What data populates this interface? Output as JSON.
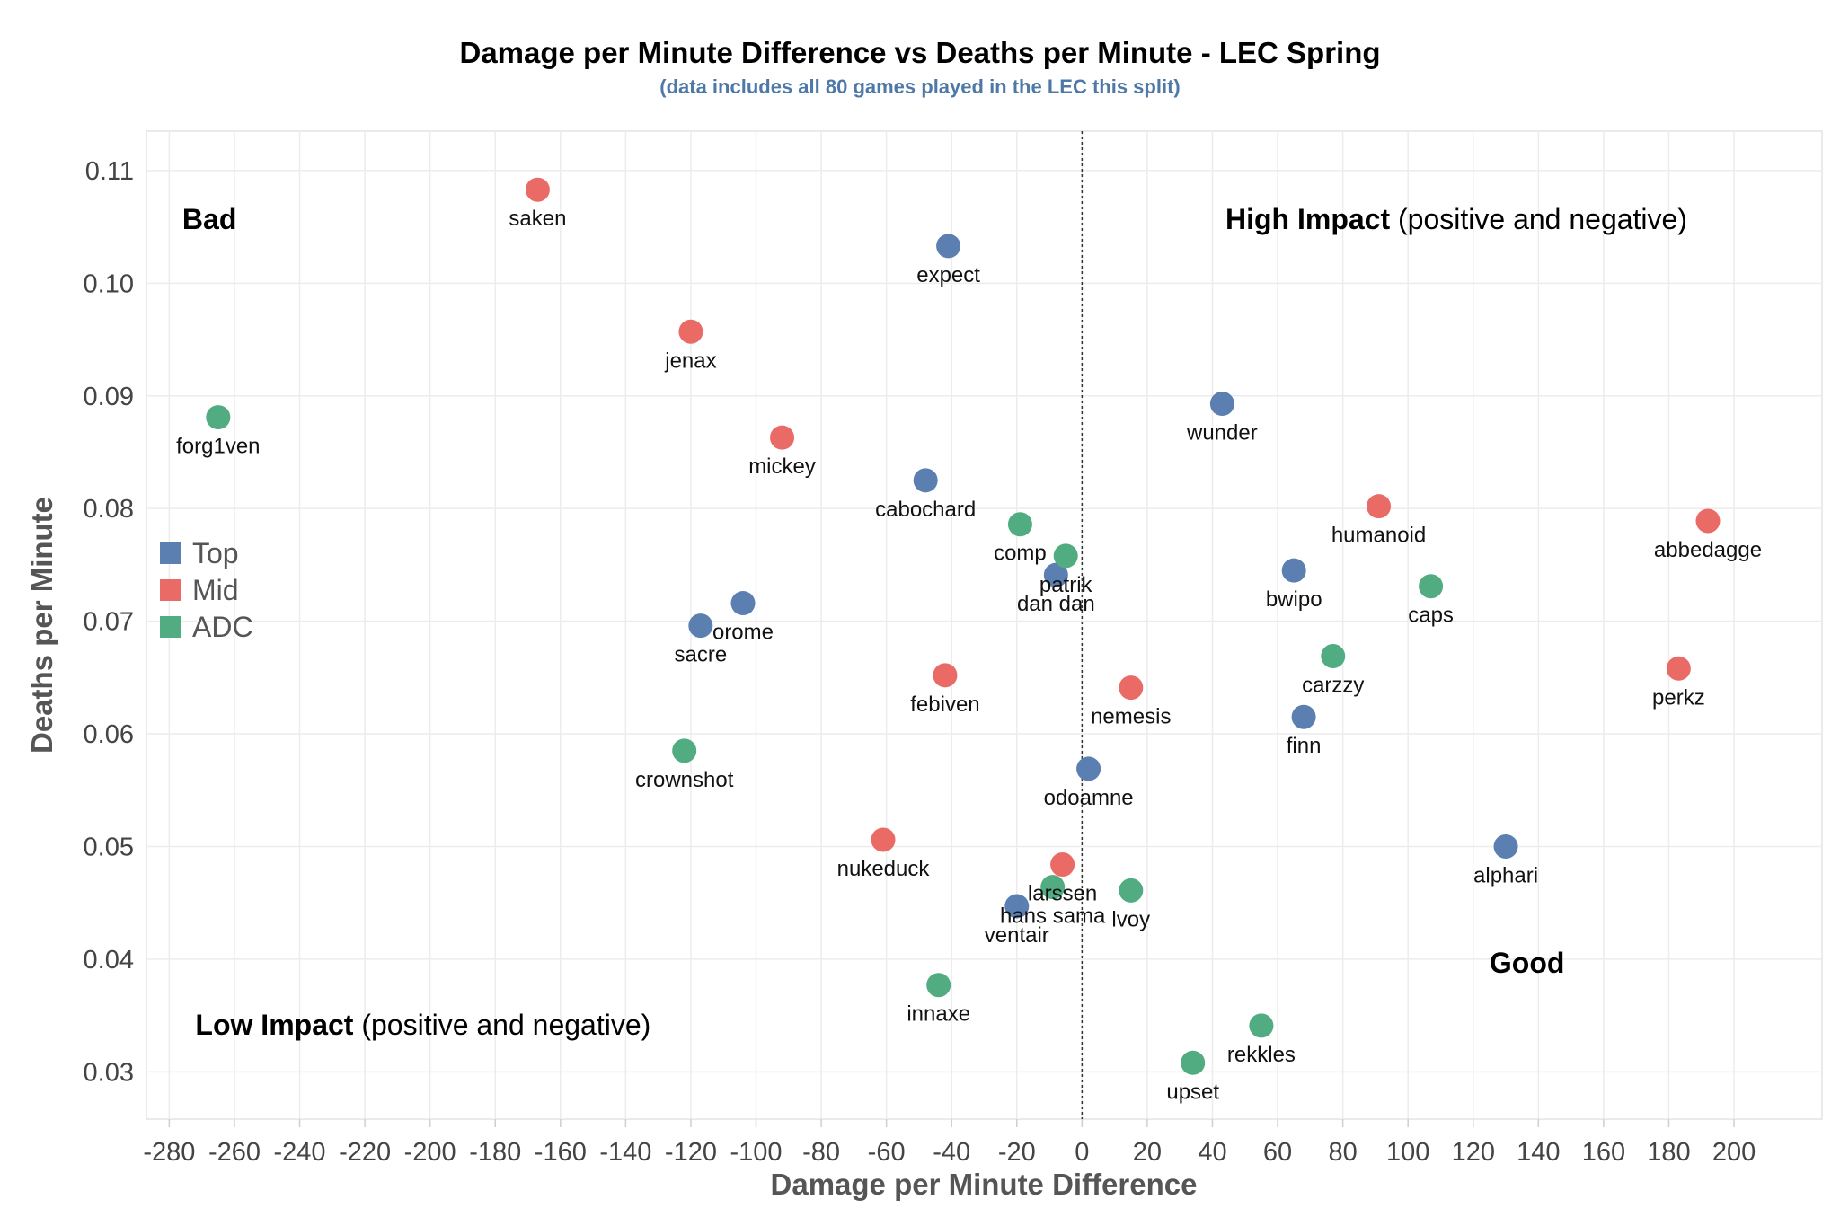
{
  "chart_data": {
    "type": "scatter",
    "title": "Damage per Minute Difference vs Deaths per Minute - LEC Spring",
    "subtitle": "(data includes all 80 games played in the LEC this split)",
    "xlabel": "Damage per Minute Difference",
    "ylabel": "Deaths per Minute",
    "xlim": [
      -287,
      227
    ],
    "ylim": [
      0.0258,
      0.1135
    ],
    "x_ticks": [
      -280,
      -260,
      -240,
      -220,
      -200,
      -180,
      -160,
      -140,
      -120,
      -100,
      -80,
      -60,
      -40,
      -20,
      0,
      20,
      40,
      60,
      80,
      100,
      120,
      140,
      160,
      180,
      200
    ],
    "y_ticks": [
      0.03,
      0.04,
      0.05,
      0.06,
      0.07,
      0.08,
      0.09,
      0.1,
      0.11
    ],
    "grid": true,
    "reference_line_x": 0,
    "legend": {
      "position": "left",
      "entries": [
        {
          "name": "Top",
          "color": "#5b7fb0"
        },
        {
          "name": "Mid",
          "color": "#ea6a66"
        },
        {
          "name": "ADC",
          "color": "#52ac82"
        }
      ]
    },
    "quadrant_labels": [
      {
        "bold": "Bad",
        "rest": "",
        "anchor": "start",
        "x": -276,
        "y": 0.1048
      },
      {
        "bold": "High Impact",
        "rest": " (positive and negative)",
        "anchor": "start",
        "x": 44,
        "y": 0.1048
      },
      {
        "bold": "Low Impact",
        "rest": " (positive and negative)",
        "anchor": "start",
        "x": -272,
        "y": 0.0333
      },
      {
        "bold": "Good",
        "rest": "",
        "anchor": "start",
        "x": 125,
        "y": 0.0388
      }
    ],
    "series": [
      {
        "name": "Top",
        "points": [
          {
            "label": "expect",
            "x": -41,
            "y": 0.1033
          },
          {
            "label": "wunder",
            "x": 43,
            "y": 0.0893
          },
          {
            "label": "cabochard",
            "x": -48,
            "y": 0.0825
          },
          {
            "label": "bwipo",
            "x": 65,
            "y": 0.0745
          },
          {
            "label": "dan dan",
            "x": -8,
            "y": 0.0741
          },
          {
            "label": "orome",
            "x": -104,
            "y": 0.0716
          },
          {
            "label": "sacre",
            "x": -117,
            "y": 0.0696
          },
          {
            "label": "finn",
            "x": 68,
            "y": 0.0615
          },
          {
            "label": "odoamne",
            "x": 2,
            "y": 0.0569
          },
          {
            "label": "alphari",
            "x": 130,
            "y": 0.05
          },
          {
            "label": "ventair",
            "x": -20,
            "y": 0.0447
          }
        ]
      },
      {
        "name": "Mid",
        "points": [
          {
            "label": "saken",
            "x": -167,
            "y": 0.1083
          },
          {
            "label": "jenax",
            "x": -120,
            "y": 0.0957
          },
          {
            "label": "mickey",
            "x": -92,
            "y": 0.0863
          },
          {
            "label": "humanoid",
            "x": 91,
            "y": 0.0802
          },
          {
            "label": "abbedagge",
            "x": 192,
            "y": 0.0789
          },
          {
            "label": "perkz",
            "x": 183,
            "y": 0.0658
          },
          {
            "label": "febiven",
            "x": -42,
            "y": 0.0652
          },
          {
            "label": "nemesis",
            "x": 15,
            "y": 0.0641
          },
          {
            "label": "nukeduck",
            "x": -61,
            "y": 0.0506
          },
          {
            "label": "larssen",
            "x": -6,
            "y": 0.0484
          }
        ]
      },
      {
        "name": "ADC",
        "points": [
          {
            "label": "forg1ven",
            "x": -265,
            "y": 0.0881
          },
          {
            "label": "comp",
            "x": -19,
            "y": 0.0786
          },
          {
            "label": "patrik",
            "x": -5,
            "y": 0.0758
          },
          {
            "label": "caps",
            "x": 107,
            "y": 0.0731
          },
          {
            "label": "carzzy",
            "x": 77,
            "y": 0.0669
          },
          {
            "label": "crownshot",
            "x": -122,
            "y": 0.0585
          },
          {
            "label": "hans sama",
            "x": -9,
            "y": 0.0464
          },
          {
            "label": "lvoy",
            "x": 15,
            "y": 0.0461
          },
          {
            "label": "innaxe",
            "x": -44,
            "y": 0.0377
          },
          {
            "label": "rekkles",
            "x": 55,
            "y": 0.0341
          },
          {
            "label": "upset",
            "x": 34,
            "y": 0.0308
          }
        ]
      }
    ]
  }
}
